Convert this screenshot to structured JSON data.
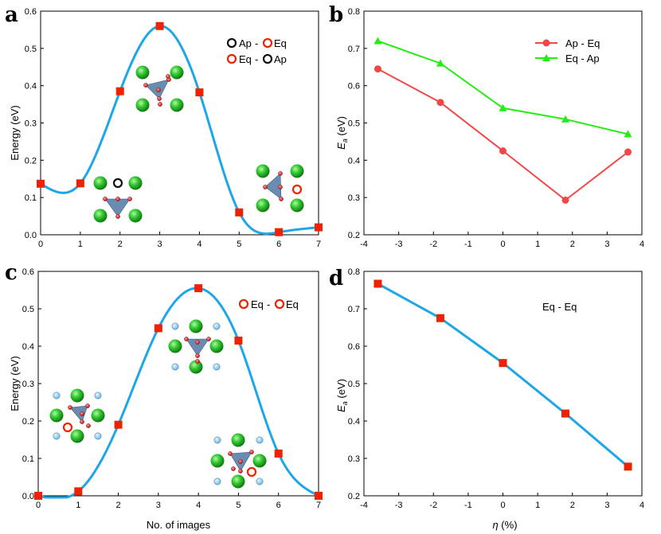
{
  "chart_data": [
    {
      "panel": "a",
      "type": "line",
      "title": "",
      "xlabel": "",
      "ylabel": "Energy (eV)",
      "xlim": [
        0,
        7
      ],
      "ylim": [
        0,
        0.6
      ],
      "xticks": [
        "0",
        "1",
        "2",
        "3",
        "4",
        "5",
        "6",
        "7"
      ],
      "yticks": [
        "0.0",
        "0.1",
        "0.2",
        "0.3",
        "0.4",
        "0.5",
        "0.6"
      ],
      "x": [
        0,
        1,
        2,
        3,
        4,
        5,
        6,
        7
      ],
      "values": [
        0.137,
        0.138,
        0.385,
        0.56,
        0.382,
        0.06,
        0.007,
        0.02
      ],
      "legend": [
        {
          "left_sym": "open-black-circle",
          "left": "Ap",
          "dash": "-",
          "right_sym": "open-red-circle",
          "right": "Eq"
        },
        {
          "left_sym": "open-red-circle",
          "left": "Eq",
          "dash": "-",
          "right_sym": "open-black-circle",
          "right": "Ap"
        }
      ],
      "series_color": "#1ea7e8",
      "marker_color": "#ee2200"
    },
    {
      "panel": "b",
      "type": "line",
      "title": "",
      "xlabel": "",
      "ylabel": "Ea (eV)",
      "ylabel_main": "E",
      "ylabel_sub": "a",
      "ylabel_unit": " (eV)",
      "xlim": [
        -4,
        4
      ],
      "ylim": [
        0.2,
        0.8
      ],
      "xticks": [
        "-4",
        "-3",
        "-2",
        "-1",
        "0",
        "1",
        "2",
        "3",
        "4"
      ],
      "yticks": [
        "0.2",
        "0.3",
        "0.4",
        "0.5",
        "0.6",
        "0.7",
        "0.8"
      ],
      "x": [
        -3.6,
        -1.8,
        0,
        1.8,
        3.6
      ],
      "series": [
        {
          "name": "Ap - Eq",
          "values": [
            0.645,
            0.555,
            0.425,
            0.293,
            0.422
          ],
          "color": "#f04848",
          "marker": "circle"
        },
        {
          "name": "Eq - Ap",
          "values": [
            0.72,
            0.66,
            0.54,
            0.51,
            0.47
          ],
          "color": "#22ee11",
          "marker": "triangle"
        }
      ]
    },
    {
      "panel": "c",
      "type": "line",
      "title": "",
      "xlabel": "No. of images",
      "ylabel": "Energy (eV)",
      "xlim": [
        0,
        7
      ],
      "ylim": [
        0,
        0.6
      ],
      "xticks": [
        "0",
        "1",
        "2",
        "3",
        "4",
        "5",
        "6",
        "7"
      ],
      "yticks": [
        "0.0",
        "0.1",
        "0.2",
        "0.3",
        "0.4",
        "0.5",
        "0.6"
      ],
      "x": [
        0,
        1,
        2,
        3,
        4,
        5,
        6,
        7
      ],
      "values": [
        0.0,
        0.012,
        0.19,
        0.448,
        0.555,
        0.415,
        0.113,
        0.0
      ],
      "legend": [
        {
          "left_sym": "open-red-circle",
          "left": "Eq",
          "dash": "-",
          "right_sym": "open-red-circle",
          "right": "Eq"
        }
      ],
      "series_color": "#1ea7e8",
      "marker_color": "#ee2200"
    },
    {
      "panel": "d",
      "type": "line",
      "title": "",
      "xlabel": "η (%)",
      "xlabel_main": "η",
      "xlabel_unit": " (%)",
      "ylabel": "Ea (eV)",
      "ylabel_main": "E",
      "ylabel_sub": "a",
      "ylabel_unit": " (eV)",
      "xlim": [
        -4,
        4
      ],
      "ylim": [
        0.2,
        0.8
      ],
      "xticks": [
        "-4",
        "-3",
        "-2",
        "-1",
        "0",
        "1",
        "2",
        "3",
        "4"
      ],
      "yticks": [
        "0.2",
        "0.3",
        "0.4",
        "0.5",
        "0.6",
        "0.7",
        "0.8"
      ],
      "x": [
        -3.6,
        -1.8,
        0,
        1.8,
        3.6
      ],
      "series": [
        {
          "name": "Eq - Eq",
          "values": [
            0.767,
            0.675,
            0.555,
            0.42,
            0.278
          ],
          "color": "#1ea7e8",
          "marker": "square"
        }
      ],
      "annotation": "Eq - Eq"
    }
  ],
  "panel_labels": [
    "a",
    "b",
    "c",
    "d"
  ],
  "colors": {
    "curve": "#1ea7e8",
    "marker": "#ee2200",
    "atom_green": "#33cc33",
    "atom_red": "#dd2222",
    "tetra": "#5a7fa8",
    "atom_lightblue": "#9ad0ee"
  }
}
